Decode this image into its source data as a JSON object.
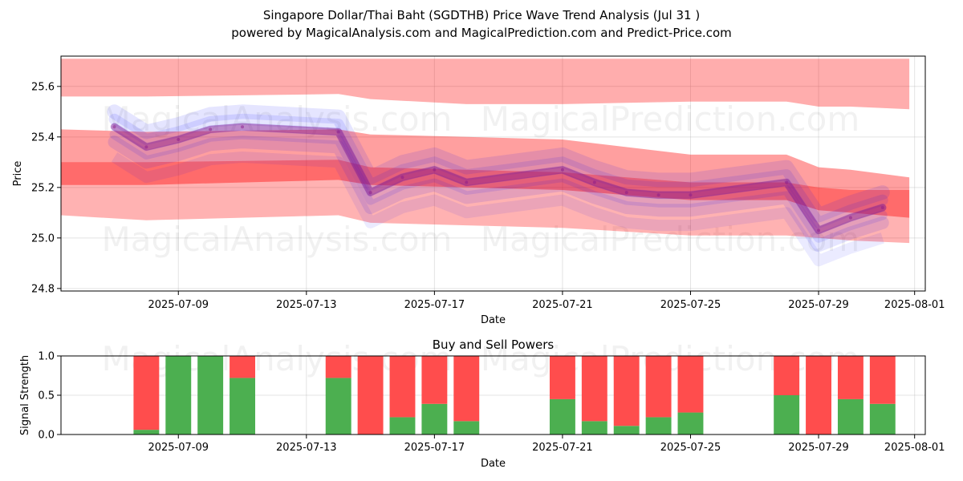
{
  "chart_data": [
    {
      "type": "area",
      "title": "Singapore Dollar/Thai Baht (SGDTHB) Price Wave Trend Analysis (Jul 31 )",
      "subtitle": "powered by MagicalAnalysis.com and MagicalPrediction.com and Predict-Price.com",
      "xlabel": "Date",
      "ylabel": "Price",
      "xlim": [
        "2025-07-05T08:00",
        "2025-08-01T08:00"
      ],
      "ylim": [
        24.79,
        25.72
      ],
      "x_ticks": [
        "2025-07-09",
        "2025-07-13",
        "2025-07-17",
        "2025-07-21",
        "2025-07-25",
        "2025-07-29",
        "2025-08-01"
      ],
      "y_ticks": [
        24.8,
        25.0,
        25.2,
        25.4,
        25.6
      ],
      "grid": true,
      "watermarks": [
        "MagicalAnalysis.com",
        "MagicalPrediction.com"
      ],
      "colors": {
        "red_band": "#ff0000",
        "blue_wave": "#0000ff"
      },
      "price_wave": {
        "x": [
          "2025-07-07",
          "2025-07-08",
          "2025-07-09",
          "2025-07-10",
          "2025-07-11",
          "2025-07-14",
          "2025-07-15",
          "2025-07-16",
          "2025-07-17",
          "2025-07-18",
          "2025-07-21",
          "2025-07-22",
          "2025-07-23",
          "2025-07-24",
          "2025-07-25",
          "2025-07-28",
          "2025-07-29",
          "2025-07-30",
          "2025-07-31"
        ],
        "y": [
          25.44,
          25.36,
          25.39,
          25.43,
          25.44,
          25.42,
          25.18,
          25.24,
          25.27,
          25.22,
          25.27,
          25.22,
          25.18,
          25.17,
          25.17,
          25.22,
          25.03,
          25.08,
          25.12
        ]
      },
      "bands": {
        "x": [
          "2025-07-05T08:00",
          "2025-07-08",
          "2025-07-14",
          "2025-07-15",
          "2025-07-18",
          "2025-07-21",
          "2025-07-25",
          "2025-07-28",
          "2025-07-29",
          "2025-07-30",
          "2025-07-31T20:00"
        ],
        "outer_upper": [
          25.71,
          25.71,
          25.71,
          25.71,
          25.71,
          25.71,
          25.71,
          25.71,
          25.71,
          25.71,
          25.71
        ],
        "outer_upper_low": [
          25.56,
          25.56,
          25.57,
          25.55,
          25.53,
          25.53,
          25.54,
          25.54,
          25.52,
          25.52,
          25.51
        ],
        "upper": [
          25.43,
          25.42,
          25.43,
          25.41,
          25.4,
          25.39,
          25.33,
          25.33,
          25.28,
          25.27,
          25.24
        ],
        "center_high": [
          25.3,
          25.3,
          25.31,
          25.28,
          25.27,
          25.26,
          25.22,
          25.22,
          25.2,
          25.19,
          25.19
        ],
        "center_low": [
          25.21,
          25.21,
          25.23,
          25.21,
          25.2,
          25.19,
          25.15,
          25.15,
          25.11,
          25.1,
          25.08
        ],
        "lower": [
          25.09,
          25.07,
          25.09,
          25.06,
          25.05,
          25.04,
          25.01,
          25.01,
          25.0,
          24.99,
          24.98
        ]
      }
    },
    {
      "type": "bar",
      "title": "Buy and Sell Powers",
      "xlabel": "Date",
      "ylabel": "Signal Strength",
      "ylim": [
        0,
        1
      ],
      "y_ticks": [
        0.0,
        0.5,
        1.0
      ],
      "x_ticks": [
        "2025-07-09",
        "2025-07-13",
        "2025-07-17",
        "2025-07-21",
        "2025-07-25",
        "2025-07-29",
        "2025-08-01"
      ],
      "colors": {
        "buy": "#4caf50",
        "sell": "#ff4d4d"
      },
      "series": [
        {
          "name": "Buy",
          "values": [
            0.06,
            1.0,
            1.0,
            0.72,
            0.72,
            0.0,
            0.22,
            0.39,
            0.17,
            0.45,
            0.17,
            0.11,
            0.22,
            0.28,
            0.5,
            0.0,
            0.45,
            0.39
          ]
        },
        {
          "name": "Sell",
          "values": [
            0.94,
            0.0,
            0.0,
            0.28,
            0.28,
            1.0,
            0.78,
            0.61,
            0.83,
            0.55,
            0.83,
            0.89,
            0.78,
            0.72,
            0.5,
            1.0,
            0.55,
            0.61
          ]
        }
      ],
      "categories": [
        "2025-07-08",
        "2025-07-09",
        "2025-07-10",
        "2025-07-11",
        "2025-07-14",
        "2025-07-15",
        "2025-07-16",
        "2025-07-17",
        "2025-07-18",
        "2025-07-21",
        "2025-07-22",
        "2025-07-23",
        "2025-07-24",
        "2025-07-25",
        "2025-07-28",
        "2025-07-29",
        "2025-07-30",
        "2025-07-31"
      ],
      "watermarks": [
        "MagicalAnalysis.com",
        "MagicalPrediction.com"
      ]
    }
  ]
}
